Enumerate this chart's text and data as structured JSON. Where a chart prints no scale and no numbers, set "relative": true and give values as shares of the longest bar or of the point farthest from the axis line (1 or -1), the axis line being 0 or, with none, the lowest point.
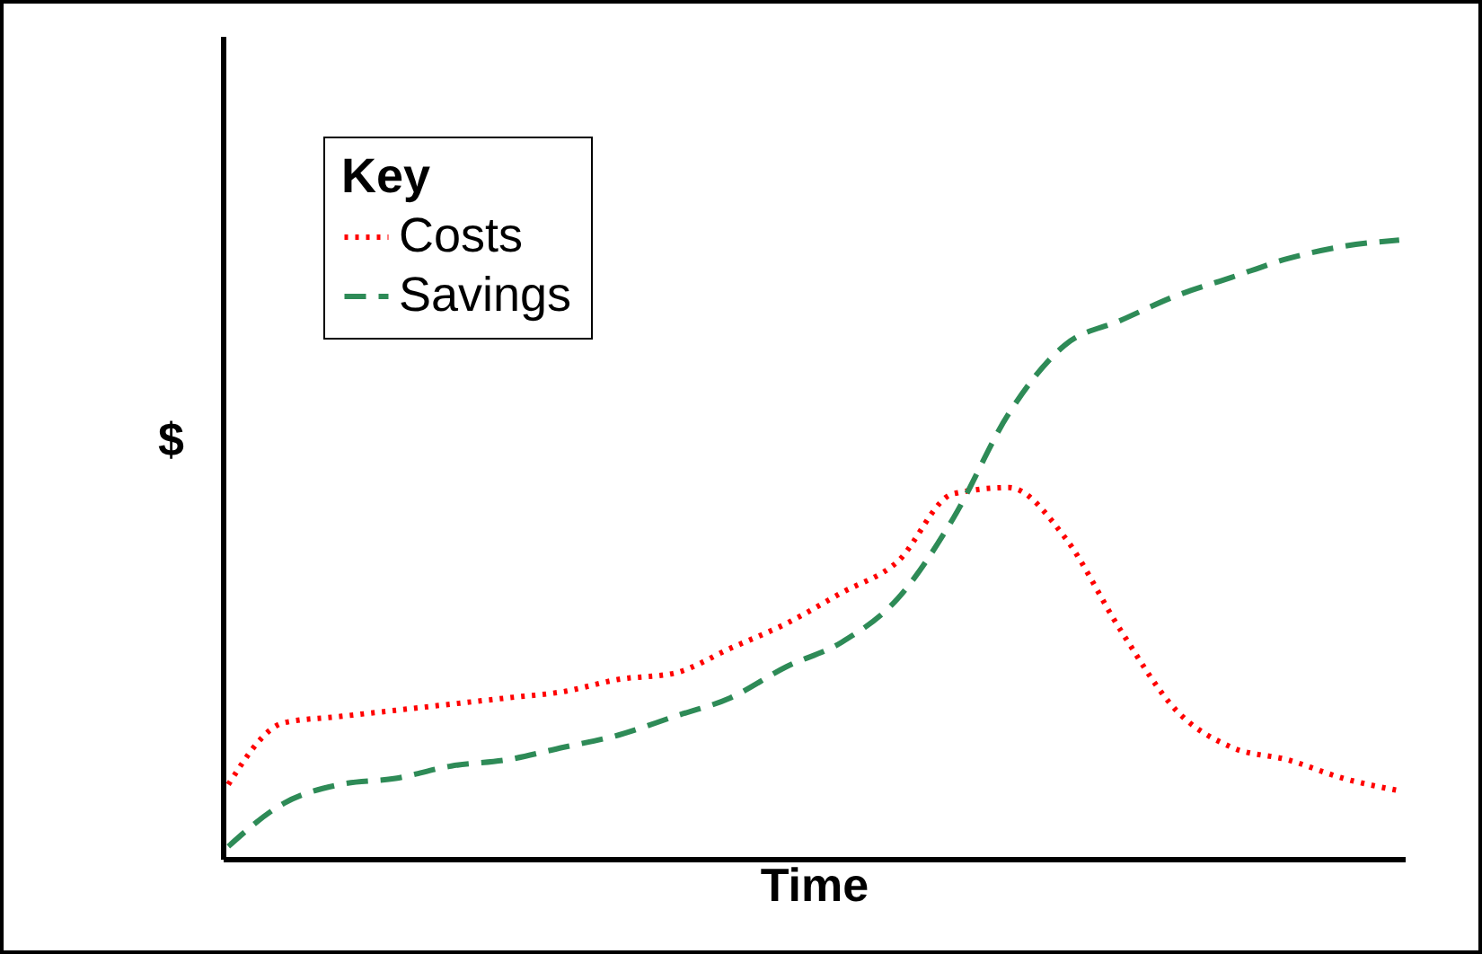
{
  "chart_data": {
    "type": "line",
    "xlabel": "Time",
    "ylabel": "$",
    "relative": true,
    "legend": "top left",
    "legend_title": "Key",
    "grid": false,
    "categories": [
      null,
      null,
      null,
      null,
      null,
      null,
      null,
      null,
      null,
      null,
      null,
      null,
      null,
      null,
      null,
      null,
      null,
      null,
      null,
      null,
      null,
      null
    ],
    "series": [
      {
        "name": "Costs",
        "color": "#ff0000",
        "line_style": "dotted",
        "values": [
          0.12,
          0.22,
          0.23,
          0.24,
          0.25,
          0.26,
          0.27,
          0.29,
          0.3,
          0.34,
          0.38,
          0.43,
          0.48,
          0.59,
          0.6,
          0.52,
          0.37,
          0.24,
          0.18,
          0.16,
          0.13,
          0.11
        ]
      },
      {
        "name": "Savings",
        "color": "#2e8b57",
        "line_style": "dashed",
        "values": [
          0.02,
          0.09,
          0.12,
          0.13,
          0.15,
          0.16,
          0.18,
          0.2,
          0.23,
          0.26,
          0.31,
          0.35,
          0.42,
          0.55,
          0.72,
          0.83,
          0.87,
          0.91,
          0.94,
          0.97,
          0.99,
          1.0
        ]
      }
    ]
  }
}
